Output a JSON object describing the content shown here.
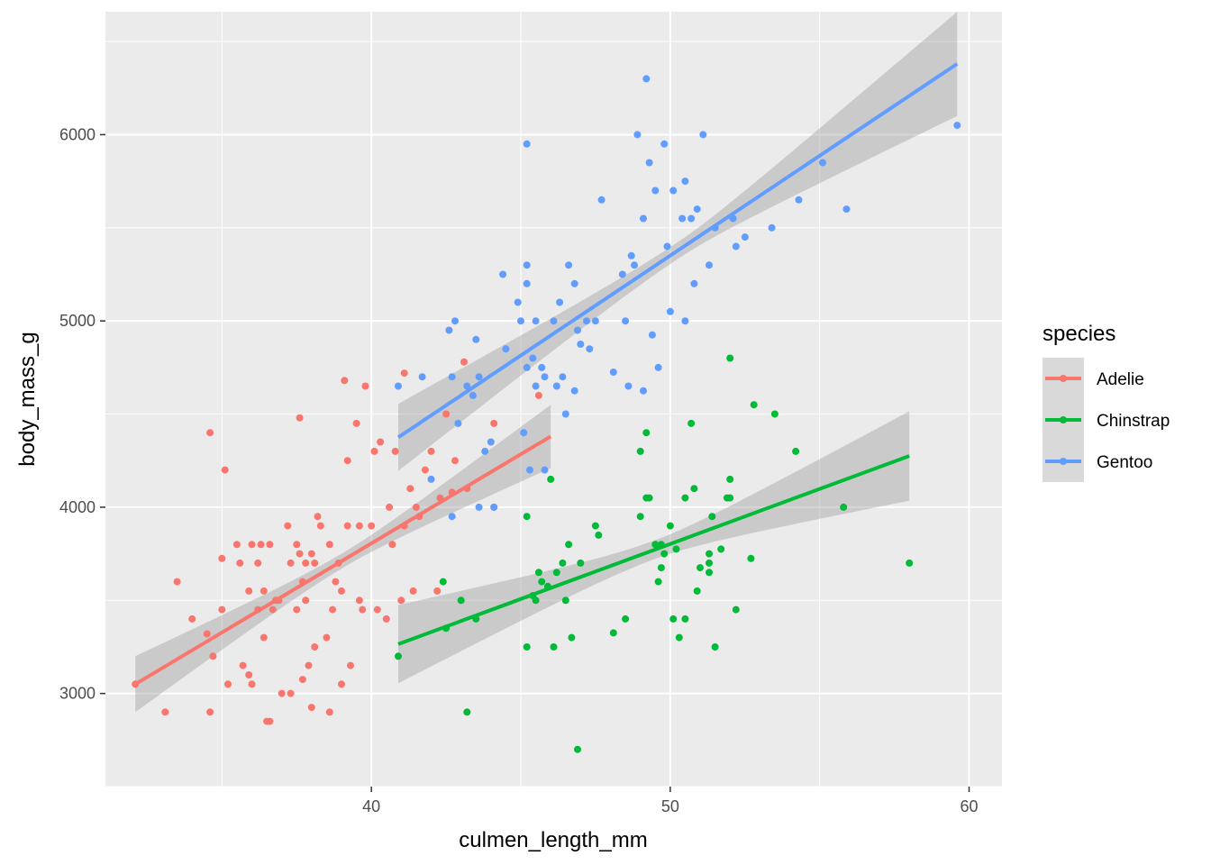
{
  "chart_data": {
    "type": "scatter",
    "title": "",
    "xlabel": "culmen_length_mm",
    "ylabel": "body_mass_g",
    "xlim": [
      31.1,
      61.1
    ],
    "ylim": [
      2500,
      6660
    ],
    "xticks": [
      40,
      50,
      60
    ],
    "yticks": [
      3000,
      4000,
      5000,
      6000
    ],
    "xtick_labels": [
      "40",
      "50",
      "60"
    ],
    "ytick_labels": [
      "3000",
      "4000",
      "5000",
      "6000"
    ],
    "legend": {
      "title": "species",
      "position": "right"
    },
    "series": [
      {
        "name": "Adelie",
        "color": "#F8766D",
        "fit": {
          "x": [
            32.1,
            46.0
          ],
          "y": [
            3050,
            4380
          ]
        },
        "ci_halfwidth": {
          "start": 150,
          "mid": 40,
          "end": 170
        },
        "points": [
          [
            32.1,
            3050
          ],
          [
            33.1,
            2900
          ],
          [
            33.5,
            3600
          ],
          [
            34.0,
            3400
          ],
          [
            34.5,
            3320
          ],
          [
            34.6,
            2900
          ],
          [
            34.6,
            4400
          ],
          [
            34.7,
            3200
          ],
          [
            35.0,
            3725
          ],
          [
            35.0,
            3450
          ],
          [
            35.1,
            4200
          ],
          [
            35.2,
            3050
          ],
          [
            35.5,
            3800
          ],
          [
            35.6,
            3700
          ],
          [
            35.7,
            3150
          ],
          [
            35.9,
            3100
          ],
          [
            35.9,
            3550
          ],
          [
            36.0,
            3800
          ],
          [
            36.0,
            3050
          ],
          [
            36.2,
            3450
          ],
          [
            36.2,
            3700
          ],
          [
            36.3,
            3800
          ],
          [
            36.4,
            3550
          ],
          [
            36.4,
            3300
          ],
          [
            36.5,
            2850
          ],
          [
            36.6,
            3800
          ],
          [
            36.6,
            2850
          ],
          [
            36.7,
            3450
          ],
          [
            36.8,
            3500
          ],
          [
            36.9,
            3500
          ],
          [
            37.0,
            3000
          ],
          [
            37.2,
            3900
          ],
          [
            37.3,
            3700
          ],
          [
            37.3,
            3000
          ],
          [
            37.5,
            3800
          ],
          [
            37.5,
            3450
          ],
          [
            37.6,
            4480
          ],
          [
            37.6,
            3750
          ],
          [
            37.7,
            3600
          ],
          [
            37.7,
            3075
          ],
          [
            37.8,
            3700
          ],
          [
            37.8,
            3500
          ],
          [
            37.9,
            3150
          ],
          [
            38.0,
            3750
          ],
          [
            38.0,
            2925
          ],
          [
            38.1,
            3250
          ],
          [
            38.1,
            3700
          ],
          [
            38.2,
            3950
          ],
          [
            38.3,
            3900
          ],
          [
            38.5,
            3300
          ],
          [
            38.6,
            3800
          ],
          [
            38.6,
            2900
          ],
          [
            38.7,
            3450
          ],
          [
            38.8,
            3600
          ],
          [
            38.9,
            3700
          ],
          [
            39.0,
            3550
          ],
          [
            39.0,
            3050
          ],
          [
            39.1,
            4680
          ],
          [
            39.2,
            4250
          ],
          [
            39.2,
            3900
          ],
          [
            39.3,
            3150
          ],
          [
            39.5,
            4450
          ],
          [
            39.6,
            3500
          ],
          [
            39.6,
            3900
          ],
          [
            39.7,
            3450
          ],
          [
            39.8,
            4650
          ],
          [
            40.0,
            3900
          ],
          [
            40.1,
            4300
          ],
          [
            40.2,
            3450
          ],
          [
            40.3,
            4350
          ],
          [
            40.5,
            3400
          ],
          [
            40.6,
            4000
          ],
          [
            40.7,
            3800
          ],
          [
            40.8,
            4300
          ],
          [
            41.0,
            3500
          ],
          [
            41.1,
            4720
          ],
          [
            41.1,
            3900
          ],
          [
            41.3,
            4100
          ],
          [
            41.4,
            3550
          ],
          [
            41.5,
            4000
          ],
          [
            41.6,
            3950
          ],
          [
            41.8,
            4200
          ],
          [
            42.0,
            4300
          ],
          [
            42.2,
            3550
          ],
          [
            42.3,
            4050
          ],
          [
            42.5,
            4500
          ],
          [
            42.7,
            4080
          ],
          [
            42.8,
            4250
          ],
          [
            43.1,
            4780
          ],
          [
            43.2,
            4100
          ],
          [
            44.1,
            4000
          ],
          [
            44.1,
            4450
          ],
          [
            45.6,
            4600
          ]
        ]
      },
      {
        "name": "Chinstrap",
        "color": "#00BA38",
        "fit": {
          "x": [
            40.9,
            58.0
          ],
          "y": [
            3265,
            4275
          ]
        },
        "ci_halfwidth": {
          "start": 210,
          "mid": 50,
          "end": 240
        },
        "points": [
          [
            40.9,
            3200
          ],
          [
            42.4,
            3600
          ],
          [
            42.5,
            3350
          ],
          [
            43.0,
            3500
          ],
          [
            43.2,
            2900
          ],
          [
            43.5,
            3400
          ],
          [
            45.2,
            3250
          ],
          [
            45.2,
            3950
          ],
          [
            45.4,
            3525
          ],
          [
            45.5,
            3500
          ],
          [
            45.6,
            3650
          ],
          [
            45.7,
            3600
          ],
          [
            45.9,
            3575
          ],
          [
            46.0,
            4150
          ],
          [
            46.1,
            3250
          ],
          [
            46.2,
            3650
          ],
          [
            46.4,
            3700
          ],
          [
            46.5,
            3500
          ],
          [
            46.6,
            3800
          ],
          [
            46.7,
            3300
          ],
          [
            46.9,
            2700
          ],
          [
            47.0,
            3700
          ],
          [
            47.5,
            3900
          ],
          [
            47.6,
            3850
          ],
          [
            48.1,
            3325
          ],
          [
            48.5,
            3400
          ],
          [
            49.0,
            4300
          ],
          [
            49.0,
            3950
          ],
          [
            49.2,
            4400
          ],
          [
            49.3,
            4050
          ],
          [
            49.5,
            3800
          ],
          [
            49.6,
            3600
          ],
          [
            49.7,
            3675
          ],
          [
            49.8,
            3750
          ],
          [
            50.0,
            3900
          ],
          [
            50.1,
            3400
          ],
          [
            50.2,
            3775
          ],
          [
            50.3,
            3300
          ],
          [
            50.5,
            3400
          ],
          [
            50.5,
            4050
          ],
          [
            50.7,
            4450
          ],
          [
            50.8,
            4100
          ],
          [
            50.9,
            3550
          ],
          [
            51.0,
            3675
          ],
          [
            51.3,
            3650
          ],
          [
            51.3,
            3700
          ],
          [
            51.3,
            3750
          ],
          [
            51.4,
            3950
          ],
          [
            51.5,
            3250
          ],
          [
            51.7,
            3775
          ],
          [
            52.0,
            4150
          ],
          [
            52.0,
            4800
          ],
          [
            52.2,
            3450
          ],
          [
            52.7,
            3725
          ],
          [
            52.8,
            4550
          ],
          [
            53.5,
            4500
          ],
          [
            54.2,
            4300
          ],
          [
            55.8,
            4000
          ],
          [
            58.0,
            3700
          ],
          [
            51.9,
            4050
          ],
          [
            52.0,
            4050
          ],
          [
            49.7,
            3800
          ],
          [
            49.2,
            4050
          ]
        ]
      },
      {
        "name": "Gentoo",
        "color": "#619CFF",
        "fit": {
          "x": [
            40.9,
            59.6
          ],
          "y": [
            4375,
            6380
          ]
        },
        "ci_halfwidth": {
          "start": 180,
          "mid": 45,
          "end": 280
        },
        "points": [
          [
            40.9,
            4650
          ],
          [
            41.7,
            4700
          ],
          [
            42.0,
            4150
          ],
          [
            42.6,
            4950
          ],
          [
            42.7,
            4700
          ],
          [
            42.8,
            5000
          ],
          [
            42.9,
            4450
          ],
          [
            43.2,
            4650
          ],
          [
            43.4,
            4600
          ],
          [
            43.5,
            4900
          ],
          [
            43.6,
            4700
          ],
          [
            43.8,
            4300
          ],
          [
            44.0,
            4350
          ],
          [
            44.4,
            5250
          ],
          [
            44.5,
            4850
          ],
          [
            44.9,
            5100
          ],
          [
            45.0,
            5000
          ],
          [
            45.1,
            4400
          ],
          [
            45.2,
            5200
          ],
          [
            45.2,
            5300
          ],
          [
            45.2,
            4750
          ],
          [
            45.2,
            5950
          ],
          [
            45.3,
            4200
          ],
          [
            45.4,
            4800
          ],
          [
            45.5,
            4650
          ],
          [
            45.5,
            5000
          ],
          [
            45.7,
            4750
          ],
          [
            45.8,
            4200
          ],
          [
            45.8,
            4700
          ],
          [
            46.1,
            5000
          ],
          [
            46.2,
            4650
          ],
          [
            46.3,
            5100
          ],
          [
            46.4,
            4700
          ],
          [
            46.5,
            4500
          ],
          [
            46.6,
            5300
          ],
          [
            46.8,
            4625
          ],
          [
            46.8,
            5200
          ],
          [
            46.9,
            4950
          ],
          [
            47.0,
            4875
          ],
          [
            47.2,
            5000
          ],
          [
            47.3,
            4850
          ],
          [
            47.5,
            5000
          ],
          [
            47.7,
            5650
          ],
          [
            48.1,
            4725
          ],
          [
            48.4,
            5250
          ],
          [
            48.5,
            5000
          ],
          [
            48.6,
            4650
          ],
          [
            48.7,
            5350
          ],
          [
            48.8,
            5300
          ],
          [
            48.9,
            6000
          ],
          [
            49.1,
            4625
          ],
          [
            49.1,
            5550
          ],
          [
            49.2,
            6300
          ],
          [
            49.3,
            5850
          ],
          [
            49.4,
            4925
          ],
          [
            49.5,
            5700
          ],
          [
            49.6,
            4750
          ],
          [
            49.8,
            5950
          ],
          [
            49.9,
            5400
          ],
          [
            50.0,
            5050
          ],
          [
            50.1,
            5700
          ],
          [
            50.4,
            5550
          ],
          [
            50.5,
            5750
          ],
          [
            50.5,
            5000
          ],
          [
            50.7,
            5550
          ],
          [
            50.8,
            5200
          ],
          [
            50.9,
            5600
          ],
          [
            51.1,
            6000
          ],
          [
            51.3,
            5300
          ],
          [
            51.5,
            5500
          ],
          [
            52.1,
            5550
          ],
          [
            52.2,
            5400
          ],
          [
            52.5,
            5450
          ],
          [
            53.4,
            5500
          ],
          [
            54.3,
            5650
          ],
          [
            55.1,
            5850
          ],
          [
            55.9,
            5600
          ],
          [
            59.6,
            6050
          ],
          [
            43.6,
            4000
          ],
          [
            42.7,
            3950
          ],
          [
            44.1,
            4000
          ]
        ]
      }
    ]
  }
}
